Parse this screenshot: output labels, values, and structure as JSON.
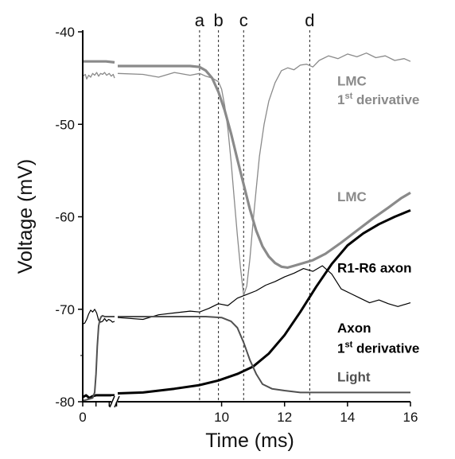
{
  "chart_data": {
    "type": "line",
    "xlabel": "Time (ms)",
    "ylabel": "Voltage (mV)",
    "xlim": [
      0,
      16
    ],
    "ylim": [
      -80,
      -40
    ],
    "x_ticks": [
      "0",
      "2",
      "4",
      "6",
      "8",
      "10",
      "12",
      "14",
      "16"
    ],
    "x_tick_values": [
      0,
      2,
      4,
      6,
      8,
      10,
      12,
      14,
      16
    ],
    "y_ticks": [
      "-40",
      "-50",
      "-60",
      "-70",
      "-80"
    ],
    "y_tick_values": [
      -40,
      -50,
      -60,
      -70,
      -80
    ],
    "markers": [
      {
        "label": "a",
        "x": 9.3
      },
      {
        "label": "b",
        "x": 9.9
      },
      {
        "label": "c",
        "x": 10.7
      },
      {
        "label": "d",
        "x": 12.8
      }
    ],
    "series": [
      {
        "id": "lmc-deriv",
        "label_lines": [
          "LMC",
          "1st derivative"
        ],
        "label_y": [
          -45.3,
          -47.3
        ],
        "color": "#8a8a8a",
        "width": 1.3,
        "x": [
          0.0,
          0.4,
          0.6,
          0.9,
          1.2,
          1.5,
          1.8,
          2.1,
          2.4,
          2.7,
          3.0,
          3.3,
          3.6,
          4.0,
          4.3,
          4.6,
          4.8,
          6.7,
          7.5,
          8.0,
          8.5,
          9.0,
          9.3,
          9.5,
          9.7,
          9.9,
          10.0,
          10.1,
          10.2,
          10.3,
          10.4,
          10.5,
          10.6,
          10.7,
          10.8,
          10.9,
          11.0,
          11.1,
          11.2,
          11.35,
          11.5,
          11.7,
          11.9,
          12.1,
          12.3,
          12.5,
          12.7,
          12.9,
          13.1,
          13.4,
          13.7,
          14.0,
          14.3,
          14.6,
          14.9,
          15.2,
          15.5,
          15.8,
          16.0
        ],
        "y": [
          -44.8,
          -44.6,
          -45.1,
          -44.7,
          -44.9,
          -44.5,
          -44.7,
          -44.4,
          -44.8,
          -44.5,
          -44.6,
          -44.4,
          -44.7,
          -44.5,
          -44.8,
          -44.6,
          -45.0,
          -44.5,
          -44.6,
          -44.9,
          -44.4,
          -44.7,
          -44.5,
          -44.8,
          -45.0,
          -45.4,
          -46.2,
          -48.0,
          -50.5,
          -54.0,
          -58.0,
          -62.0,
          -65.5,
          -68.5,
          -67.5,
          -64.5,
          -60.5,
          -57.0,
          -53.5,
          -50.0,
          -47.5,
          -45.5,
          -44.2,
          -43.9,
          -44.1,
          -43.6,
          -43.5,
          -43.8,
          -43.1,
          -42.6,
          -42.9,
          -42.4,
          -42.7,
          -42.3,
          -42.8,
          -42.6,
          -43.1,
          -42.9,
          -43.2
        ]
      },
      {
        "id": "lmc",
        "label_lines": [
          "LMC"
        ],
        "label_y": [
          -57.8
        ],
        "color": "#8a8a8a",
        "width": 3.2,
        "x": [
          0.0,
          3.5,
          4.8,
          6.7,
          9.0,
          9.3,
          9.5,
          9.7,
          9.9,
          10.1,
          10.3,
          10.5,
          10.7,
          10.9,
          11.1,
          11.3,
          11.5,
          11.7,
          11.9,
          12.1,
          12.3,
          12.6,
          12.9,
          13.3,
          13.8,
          14.3,
          14.8,
          15.3,
          15.7,
          16.0
        ],
        "y": [
          -43.2,
          -43.2,
          -43.3,
          -43.7,
          -43.7,
          -43.8,
          -44.2,
          -45.0,
          -46.5,
          -48.5,
          -51.0,
          -53.8,
          -56.5,
          -59.2,
          -61.5,
          -63.2,
          -64.3,
          -65.0,
          -65.4,
          -65.5,
          -65.3,
          -65.0,
          -64.7,
          -64.0,
          -62.8,
          -61.5,
          -60.2,
          -59.0,
          -58.0,
          -57.4
        ]
      },
      {
        "id": "r1r6",
        "label_lines": [
          "R1-R6 axon"
        ],
        "label_y": [
          -65.5
        ],
        "color": "#000000",
        "width": 3.0,
        "x": [
          0.0,
          0.5,
          1.0,
          1.5,
          2.0,
          4.8,
          6.7,
          7.5,
          8.5,
          9.3,
          9.9,
          10.5,
          11.0,
          11.5,
          12.0,
          12.5,
          13.0,
          13.5,
          14.0,
          14.5,
          15.0,
          15.5,
          16.0
        ],
        "y": [
          -79.5,
          -79.3,
          -79.6,
          -79.4,
          -79.3,
          -79.3,
          -79.1,
          -79.0,
          -78.6,
          -78.2,
          -77.7,
          -77.0,
          -76.2,
          -74.8,
          -72.8,
          -70.3,
          -67.6,
          -65.1,
          -63.1,
          -61.8,
          -60.8,
          -60.0,
          -59.3
        ]
      },
      {
        "id": "axon-deriv",
        "label_lines": [
          "Axon",
          "1st derivative"
        ],
        "label_y": [
          -72.0,
          -74.2
        ],
        "color": "#000000",
        "width": 1.2,
        "x": [
          0.0,
          0.3,
          0.6,
          0.9,
          1.2,
          1.5,
          1.8,
          2.1,
          2.4,
          2.7,
          3.0,
          3.3,
          3.6,
          3.9,
          4.2,
          4.5,
          4.8,
          6.7,
          7.5,
          8.0,
          8.5,
          9.0,
          9.3,
          9.6,
          9.9,
          10.2,
          10.5,
          10.8,
          11.1,
          11.4,
          11.7,
          12.0,
          12.3,
          12.6,
          12.9,
          13.2,
          13.5,
          13.8,
          14.1,
          14.4,
          14.7,
          15.0,
          15.3,
          15.6,
          16.0
        ],
        "y": [
          -71.6,
          -71.5,
          -71.1,
          -70.5,
          -70.1,
          -70.3,
          -70.0,
          -70.4,
          -71.2,
          -71.4,
          -71.3,
          -71.0,
          -71.3,
          -71.1,
          -71.2,
          -71.4,
          -71.3,
          -70.9,
          -71.1,
          -70.6,
          -70.4,
          -70.2,
          -70.3,
          -69.9,
          -69.4,
          -69.6,
          -68.8,
          -68.4,
          -68.0,
          -67.4,
          -67.0,
          -66.5,
          -66.1,
          -65.6,
          -65.9,
          -65.3,
          -66.2,
          -67.8,
          -68.3,
          -68.8,
          -69.3,
          -69.0,
          -69.4,
          -69.7,
          -69.3
        ]
      },
      {
        "id": "light",
        "label_lines": [
          "Light"
        ],
        "label_y": [
          -77.3
        ],
        "color": "#505050",
        "width": 2.0,
        "x": [
          0.0,
          0.5,
          1.0,
          1.5,
          1.8,
          2.0,
          2.2,
          2.4,
          2.6,
          2.8,
          3.0,
          3.3,
          4.8,
          6.7,
          8.5,
          9.5,
          10.0,
          10.3,
          10.5,
          10.7,
          10.9,
          11.1,
          11.3,
          11.6,
          12.0,
          12.5,
          13.0,
          14.0,
          15.0,
          16.0
        ],
        "y": [
          -79.9,
          -79.8,
          -79.7,
          -79.6,
          -79.0,
          -77.0,
          -74.0,
          -71.8,
          -71.1,
          -70.8,
          -70.7,
          -70.8,
          -70.8,
          -70.8,
          -70.8,
          -70.8,
          -70.9,
          -71.3,
          -72.0,
          -73.6,
          -75.5,
          -77.0,
          -78.1,
          -78.6,
          -78.8,
          -79.0,
          -79.0,
          -79.0,
          -79.0,
          -79.0
        ]
      }
    ]
  }
}
